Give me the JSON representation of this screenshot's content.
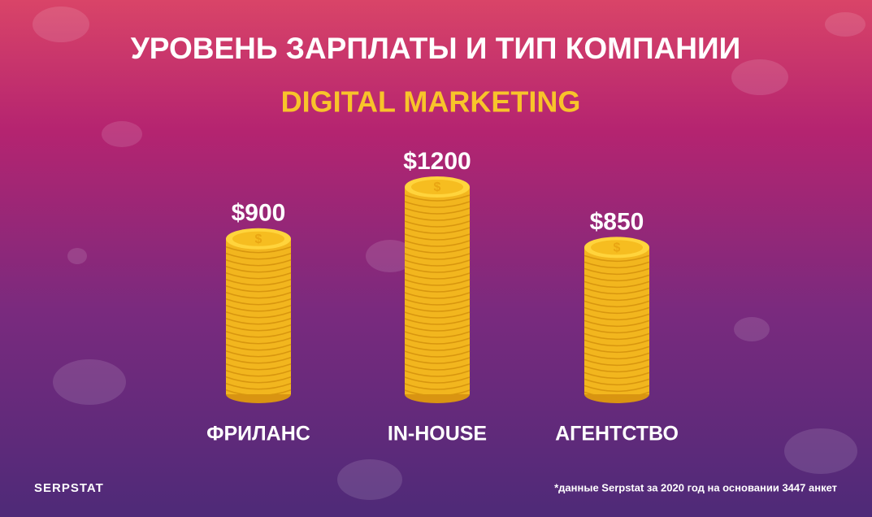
{
  "chart_data": {
    "type": "bar",
    "title": "УРОВЕНЬ ЗАРПЛАТЫ И ТИП КОМПАНИИ",
    "subtitle": "DIGITAL MARKETING",
    "categories": [
      "ФРИЛАНС",
      "IN-HOUSE",
      "АГЕНТСТВО"
    ],
    "values": [
      900,
      1200,
      850
    ],
    "value_labels": [
      "$900",
      "$1200",
      "$850"
    ],
    "color": "#f2b61e",
    "brand": "SERPSTAT",
    "footnote": "*данные Serpstat за 2020 год на основании 3447 анкет"
  }
}
